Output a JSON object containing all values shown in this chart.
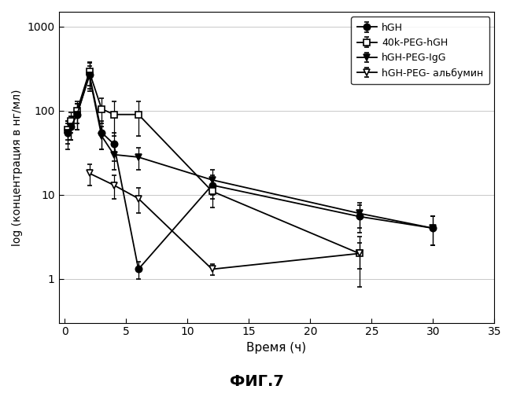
{
  "title": "ФИГ.7",
  "xlabel": "Время (ч)",
  "ylabel": "log (концентрация в нг/мл)",
  "xlim": [
    -0.5,
    35
  ],
  "ylim_log": [
    0.3,
    1500
  ],
  "yticks": [
    1,
    10,
    100,
    1000
  ],
  "series": [
    {
      "key": "hGH",
      "label": "hGH",
      "x": [
        0.25,
        0.5,
        1,
        2,
        3,
        4,
        6,
        12,
        24,
        30
      ],
      "y": [
        55,
        65,
        90,
        270,
        55,
        40,
        1.3,
        13,
        5.5,
        4.0
      ],
      "yerr_lo": [
        20,
        20,
        30,
        100,
        20,
        15,
        0.3,
        4,
        2.0,
        1.5
      ],
      "yerr_hi": [
        20,
        20,
        30,
        100,
        20,
        15,
        0.3,
        4,
        2.0,
        1.5
      ],
      "marker": "o",
      "filled": true
    },
    {
      "key": "PEG_hGH",
      "label": "40k-PEG-hGH",
      "x": [
        0.25,
        0.5,
        1,
        2,
        3,
        4,
        6,
        12,
        24
      ],
      "y": [
        60,
        75,
        100,
        290,
        105,
        90,
        90,
        11,
        2.0
      ],
      "yerr_lo": [
        15,
        20,
        30,
        90,
        35,
        40,
        40,
        4,
        0.7
      ],
      "yerr_hi": [
        15,
        20,
        30,
        90,
        35,
        40,
        40,
        4,
        0.7
      ],
      "marker": "s",
      "filled": false
    },
    {
      "key": "hGH_PEG_IgG",
      "label": "hGH-PEG-IgG",
      "x": [
        0.25,
        0.5,
        1,
        2,
        3,
        4,
        6,
        12,
        24,
        30
      ],
      "y": [
        55,
        65,
        90,
        260,
        50,
        30,
        28,
        15,
        6.0,
        4.0
      ],
      "yerr_lo": [
        15,
        20,
        30,
        80,
        15,
        10,
        8,
        5,
        2.0,
        1.5
      ],
      "yerr_hi": [
        15,
        20,
        30,
        80,
        15,
        10,
        8,
        5,
        2.0,
        1.5
      ],
      "marker": "v",
      "filled": true
    },
    {
      "key": "hGH_PEG_albumin",
      "label": "hGH-PEG- альбумин",
      "x": [
        2,
        4,
        6,
        12,
        24
      ],
      "y": [
        18,
        13,
        9,
        1.3,
        2.0
      ],
      "yerr_lo": [
        5,
        4,
        3,
        0.2,
        1.2
      ],
      "yerr_hi": [
        5,
        4,
        3,
        0.2,
        1.2
      ],
      "marker": "v",
      "filled": false
    }
  ],
  "background_color": "#ffffff"
}
